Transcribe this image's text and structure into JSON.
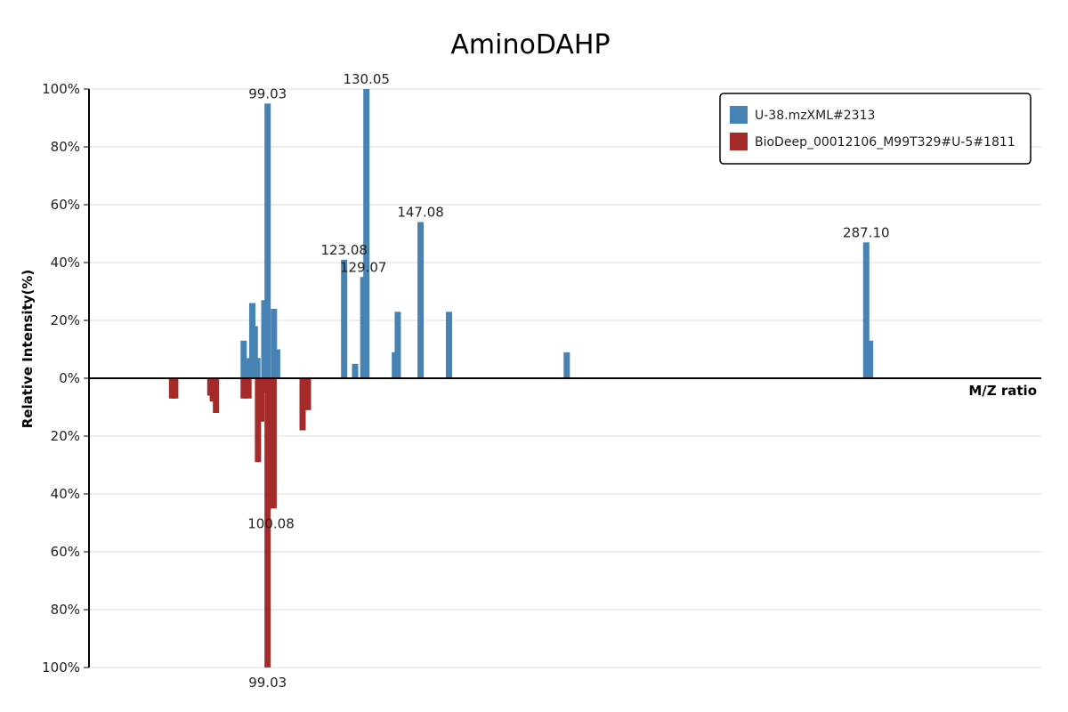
{
  "chart_data": {
    "type": "bar",
    "title": "AminoDAHP",
    "xlabel": "M/Z ratio",
    "ylabel": "Relative Intensity(%)",
    "ylim": [
      -100,
      100
    ],
    "xlim": [
      42.9,
      342.1
    ],
    "y_ticks": [
      "100%",
      "80%",
      "60%",
      "40%",
      "20%",
      "0%",
      "20%",
      "40%",
      "60%",
      "80%",
      "100%"
    ],
    "grid": true,
    "legend_position": "top-right",
    "series": [
      {
        "name": "U-38.mzXML#2313",
        "color": "#4682b4",
        "direction": "up",
        "points": [
          {
            "mz": 91.5,
            "intensity": 13
          },
          {
            "mz": 92.5,
            "intensity": 6
          },
          {
            "mz": 93.5,
            "intensity": 7
          },
          {
            "mz": 94.2,
            "intensity": 26
          },
          {
            "mz": 95.0,
            "intensity": 18
          },
          {
            "mz": 95.8,
            "intensity": 7
          },
          {
            "mz": 98.0,
            "intensity": 27
          },
          {
            "mz": 99.03,
            "intensity": 95,
            "label": "99.03"
          },
          {
            "mz": 101.0,
            "intensity": 24
          },
          {
            "mz": 102.0,
            "intensity": 10
          },
          {
            "mz": 123.08,
            "intensity": 41,
            "label": "123.08"
          },
          {
            "mz": 126.5,
            "intensity": 5
          },
          {
            "mz": 129.07,
            "intensity": 35,
            "label": "129.07"
          },
          {
            "mz": 130.05,
            "intensity": 100,
            "label": "130.05"
          },
          {
            "mz": 139.0,
            "intensity": 9
          },
          {
            "mz": 139.9,
            "intensity": 23
          },
          {
            "mz": 147.08,
            "intensity": 54,
            "label": "147.08"
          },
          {
            "mz": 156.0,
            "intensity": 23
          },
          {
            "mz": 193.0,
            "intensity": 9
          },
          {
            "mz": 287.1,
            "intensity": 47,
            "label": "287.10"
          },
          {
            "mz": 288.3,
            "intensity": 13
          }
        ]
      },
      {
        "name": "BioDeep_00012106_M99T329#U-5#1811",
        "color": "#a52a2a",
        "direction": "down",
        "points": [
          {
            "mz": 69.0,
            "intensity": 7
          },
          {
            "mz": 70.0,
            "intensity": 7
          },
          {
            "mz": 81.0,
            "intensity": 6
          },
          {
            "mz": 81.8,
            "intensity": 8
          },
          {
            "mz": 82.8,
            "intensity": 12
          },
          {
            "mz": 91.5,
            "intensity": 7
          },
          {
            "mz": 93.0,
            "intensity": 7
          },
          {
            "mz": 96.0,
            "intensity": 29
          },
          {
            "mz": 97.0,
            "intensity": 15
          },
          {
            "mz": 98.4,
            "intensity": 5
          },
          {
            "mz": 99.1,
            "intensity": 15
          },
          {
            "mz": 99.9,
            "intensity": 20
          },
          {
            "mz": 100.08,
            "intensity": 45,
            "label": "100.08"
          },
          {
            "mz": 100.9,
            "intensity": 45
          },
          {
            "mz": 99.03,
            "intensity": 100,
            "label": "99.03"
          },
          {
            "mz": 110.0,
            "intensity": 18
          },
          {
            "mz": 111.7,
            "intensity": 11
          }
        ]
      }
    ]
  }
}
